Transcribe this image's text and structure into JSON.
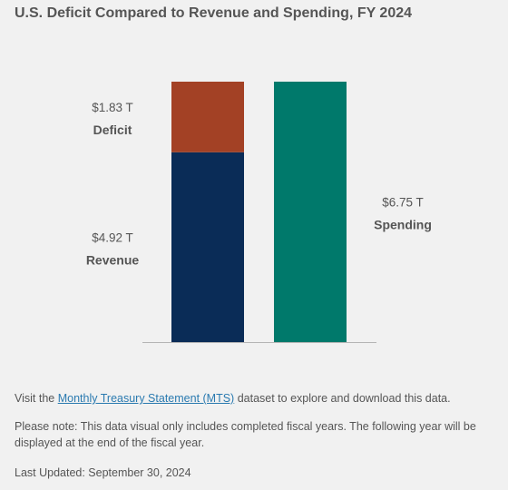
{
  "title": "U.S. Deficit Compared to Revenue and Spending, FY 2024",
  "chart_data": {
    "type": "bar",
    "title": "U.S. Deficit Compared to Revenue and Spending, FY 2024",
    "unit": "T",
    "categories": [
      "Revenue and Deficit",
      "Spending"
    ],
    "stacked": true,
    "series": [
      {
        "name": "Revenue",
        "values": [
          4.92,
          null
        ],
        "value_label": "$4.92 T",
        "color": "#0a2c57"
      },
      {
        "name": "Deficit",
        "values": [
          1.83,
          null
        ],
        "value_label": "$1.83 T",
        "color": "#a34125"
      },
      {
        "name": "Spending",
        "values": [
          null,
          6.75
        ],
        "value_label": "$6.75 T",
        "color": "#00796b"
      }
    ],
    "ylim": [
      0,
      6.75
    ],
    "grid": false,
    "legend": "none"
  },
  "footer": {
    "visit_prefix": "Visit the ",
    "mts_link": "Monthly Treasury Statement (MTS)",
    "visit_suffix": " dataset to explore and download this data.",
    "note": "Please note: This data visual only includes completed fiscal years. The following year will be displayed at the end of the fiscal year.",
    "last_updated": "Last Updated: September 30, 2024"
  }
}
